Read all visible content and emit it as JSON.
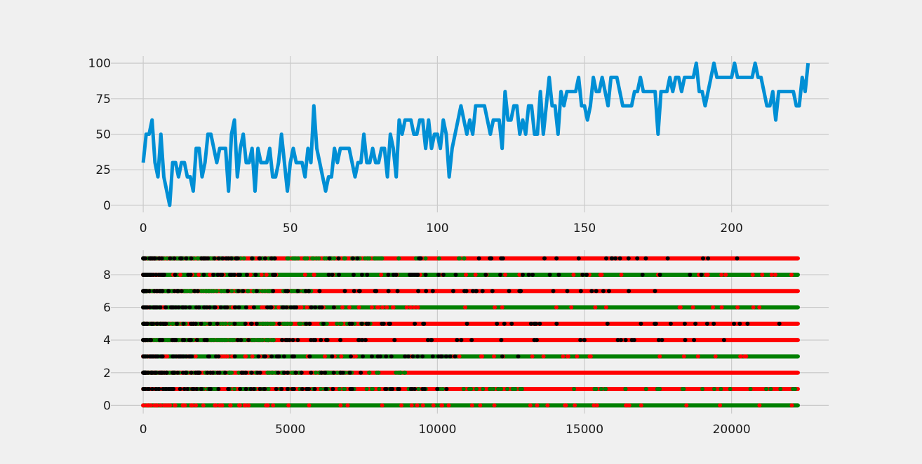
{
  "colors": {
    "background": "#f0f0f0",
    "grid": "#cbcbcb",
    "line": "#008fd5",
    "strip_red": "#ff0000",
    "strip_green": "#008000",
    "strip_black": "#000000"
  },
  "chart_data": [
    {
      "type": "line",
      "title": "",
      "xlabel": "",
      "ylabel": "",
      "grid": true,
      "xlim": [
        -11,
        233
      ],
      "ylim": [
        -5,
        105
      ],
      "xticks": [
        0,
        50,
        100,
        150,
        200
      ],
      "yticks": [
        0,
        25,
        50,
        75,
        100
      ],
      "series": [
        {
          "values": [
            30,
            50,
            50,
            60,
            30,
            20,
            50,
            20,
            10,
            0,
            30,
            30,
            20,
            30,
            30,
            20,
            20,
            10,
            40,
            40,
            20,
            30,
            50,
            50,
            40,
            30,
            40,
            40,
            40,
            10,
            50,
            60,
            20,
            40,
            50,
            30,
            30,
            40,
            10,
            40,
            30,
            30,
            30,
            40,
            20,
            20,
            30,
            50,
            30,
            10,
            30,
            40,
            30,
            30,
            30,
            20,
            40,
            30,
            70,
            40,
            30,
            20,
            10,
            20,
            20,
            40,
            30,
            40,
            40,
            40,
            40,
            30,
            20,
            30,
            30,
            50,
            30,
            30,
            40,
            30,
            30,
            40,
            40,
            20,
            50,
            40,
            20,
            60,
            50,
            60,
            60,
            60,
            50,
            50,
            60,
            60,
            40,
            60,
            40,
            50,
            50,
            40,
            60,
            50,
            20,
            40,
            50,
            60,
            70,
            60,
            50,
            60,
            50,
            70,
            70,
            70,
            70,
            60,
            50,
            60,
            60,
            60,
            40,
            80,
            60,
            60,
            70,
            70,
            50,
            60,
            50,
            70,
            70,
            50,
            50,
            80,
            50,
            70,
            90,
            70,
            70,
            50,
            80,
            70,
            80,
            80,
            80,
            80,
            90,
            70,
            70,
            60,
            70,
            90,
            80,
            80,
            90,
            80,
            70,
            90,
            90,
            90,
            80,
            70,
            70,
            70,
            70,
            80,
            80,
            90,
            80,
            80,
            80,
            80,
            80,
            50,
            80,
            80,
            80,
            90,
            80,
            90,
            90,
            80,
            90,
            90,
            90,
            90,
            100,
            80,
            80,
            70,
            80,
            90,
            100,
            90,
            90,
            90,
            90,
            90,
            90,
            100,
            90,
            90,
            90,
            90,
            90,
            90,
            100,
            90,
            90,
            80,
            70,
            70,
            80,
            60,
            80,
            80,
            80,
            80,
            80,
            80,
            70,
            70,
            90,
            80,
            100
          ]
        }
      ]
    },
    {
      "type": "scatter",
      "title": "",
      "xlabel": "",
      "ylabel": "",
      "grid": true,
      "xlim": [
        -1100,
        23300
      ],
      "ylim": [
        -0.5,
        9.5
      ],
      "xticks": [
        0,
        5000,
        10000,
        15000,
        20000
      ],
      "yticks": [
        0,
        2,
        4,
        6,
        8
      ],
      "x_range": [
        0,
        22250
      ],
      "rows": [
        {
          "y": 0,
          "dominant": "green",
          "green_until": 22250,
          "black_until": 0
        },
        {
          "y": 1,
          "dominant": "red",
          "green_until": 22250,
          "black_until": 10500
        },
        {
          "y": 2,
          "dominant": "red",
          "green_until": 9000,
          "black_until": 8000
        },
        {
          "y": 3,
          "dominant": "green",
          "green_until": 22250,
          "black_until": 12800
        },
        {
          "y": 4,
          "dominant": "red",
          "green_until": 4500,
          "black_until": 21000
        },
        {
          "y": 5,
          "dominant": "red",
          "green_until": 8000,
          "black_until": 21800
        },
        {
          "y": 6,
          "dominant": "green",
          "green_until": 22250,
          "black_until": 7000
        },
        {
          "y": 7,
          "dominant": "red",
          "green_until": 6000,
          "black_until": 18500
        },
        {
          "y": 8,
          "dominant": "green",
          "green_until": 22250,
          "black_until": 19000
        },
        {
          "y": 9,
          "dominant": "red",
          "green_until": 11000,
          "black_until": 21000
        }
      ]
    }
  ]
}
